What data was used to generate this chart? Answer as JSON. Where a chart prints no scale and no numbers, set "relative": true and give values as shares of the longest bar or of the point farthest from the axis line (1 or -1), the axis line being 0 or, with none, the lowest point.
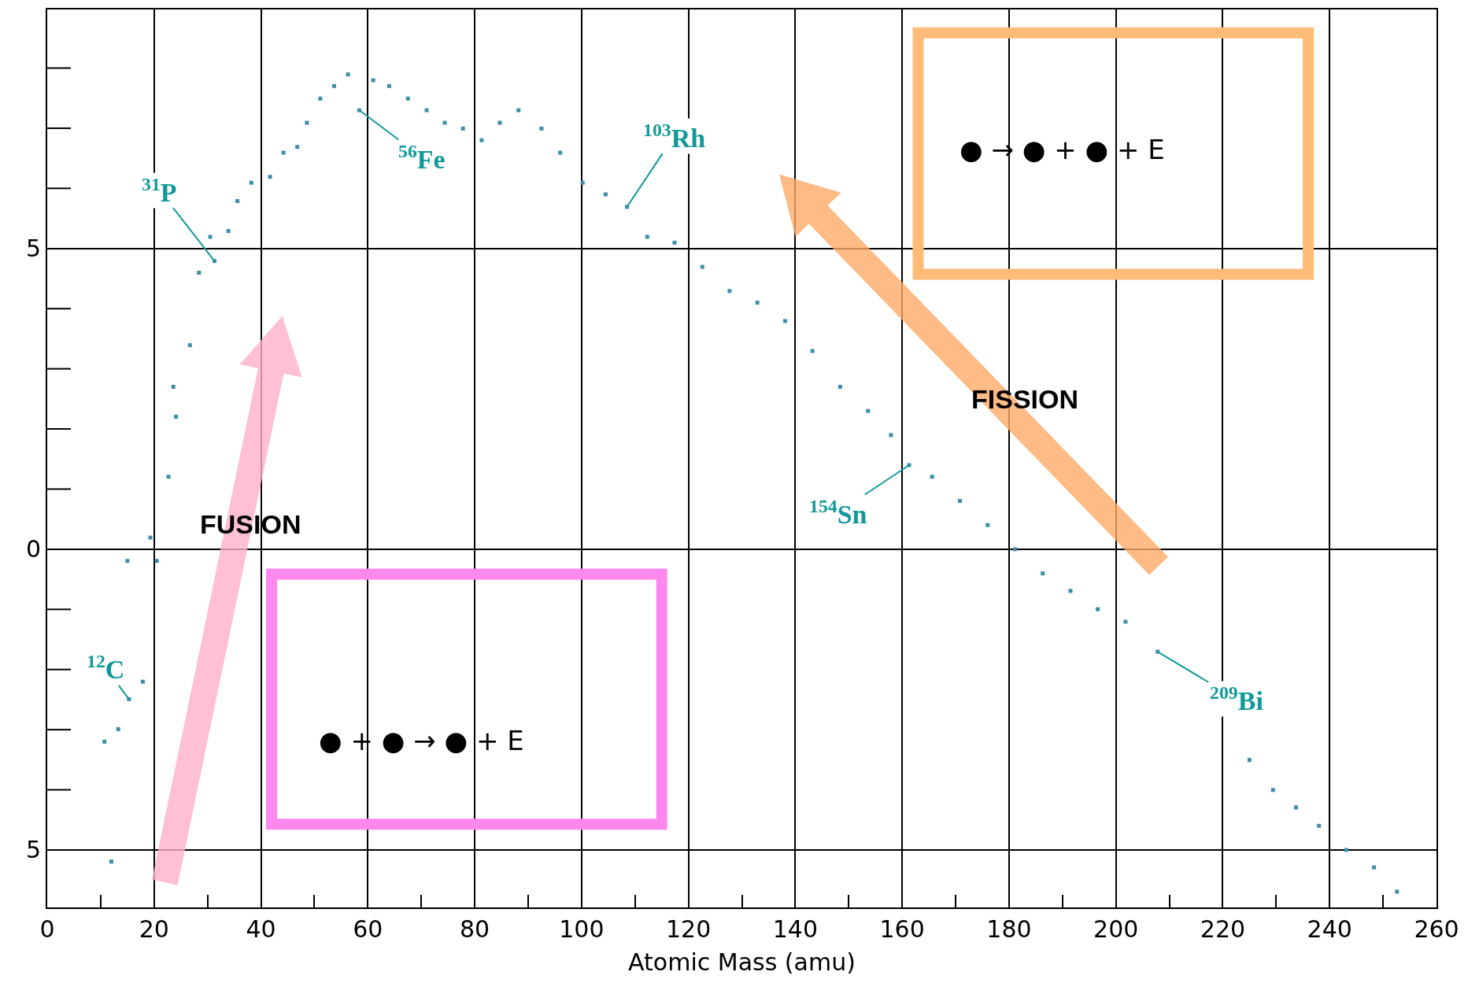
{
  "chart_data": {
    "type": "scatter",
    "xlabel": "Atomic Mass (amu)",
    "relative": true,
    "x": [
      12.0,
      10.7,
      13.3,
      15.3,
      17.9,
      15.0,
      20.5,
      19.3,
      22.7,
      24.1,
      23.6,
      26.7,
      28.4,
      31.3,
      30.5,
      33.9,
      35.6,
      38.2,
      41.7,
      44.2,
      46.8,
      48.6,
      51.1,
      53.7,
      56.3,
      58.4,
      61,
      64,
      67.5,
      71,
      74.4,
      77.8,
      81.3,
      84.7,
      88.2,
      92.5,
      96,
      100.2,
      104.5,
      108.5,
      112.3,
      117.4,
      122.6,
      127.7,
      132.9,
      138.1,
      143.2,
      148.4,
      153.6,
      157.9,
      161.3,
      165.6,
      170.8,
      176,
      181.1,
      186.3,
      191.5,
      196.6,
      201.8,
      207.8,
      225,
      229.4,
      233.7,
      238,
      243.1,
      248.3,
      252.6
    ],
    "series": [
      {
        "color": "#3a8fa8",
        "values": [
          0.055,
          0.199,
          0.214,
          0.25,
          0.271,
          0.416,
          0.416,
          0.444,
          0.517,
          0.589,
          0.625,
          0.675,
          0.762,
          0.776,
          0.805,
          0.812,
          0.848,
          0.87,
          0.877,
          0.906,
          0.913,
          0.942,
          0.971,
          0.986,
          1.0,
          0.957,
          0.993,
          0.986,
          0.971,
          0.957,
          0.942,
          0.935,
          0.921,
          0.942,
          0.957,
          0.935,
          0.906,
          0.87,
          0.856,
          0.841,
          0.805,
          0.798,
          0.769,
          0.74,
          0.726,
          0.704,
          0.668,
          0.625,
          0.596,
          0.567,
          0.531,
          0.517,
          0.488,
          0.459,
          0.43,
          0.401,
          0.38,
          0.358,
          0.343,
          0.307,
          0.177,
          0.141,
          0.12,
          0.098,
          0.069,
          0.048,
          0.019
        ]
      }
    ],
    "marker": "square",
    "xlim": [
      0,
      260
    ],
    "xticks": [
      0,
      {
        "value": 10,
        "label": null
      },
      20,
      {
        "value": 30,
        "label": null
      },
      40,
      {
        "value": 50,
        "label": null
      },
      60,
      {
        "value": 70,
        "label": null
      },
      80,
      {
        "value": 90,
        "label": null
      },
      100,
      {
        "value": 110,
        "label": null
      },
      120,
      {
        "value": 130,
        "label": null
      },
      140,
      {
        "value": 150,
        "label": null
      },
      160,
      {
        "value": 170,
        "label": null
      },
      180,
      {
        "value": 190,
        "label": null
      },
      200,
      {
        "value": 210,
        "label": null
      },
      220,
      {
        "value": 230,
        "label": null
      },
      240,
      {
        "value": 250,
        "label": null
      },
      260
    ],
    "grid": true,
    "annotations": [
      "5",
      "0",
      "5",
      {
        "text": "$^{12}$C",
        "x": 15.3,
        "y": 0.25
      },
      {
        "text": "$^{31}$P",
        "x": 31.3,
        "y": 0.776
      },
      {
        "text": "$^{56}$Fe",
        "x": 58.4,
        "y": 0.957
      },
      {
        "text": "$^{103}$Rh",
        "x": 108.5,
        "y": 0.841
      },
      {
        "text": "$^{154}$Sn",
        "x": 161.3,
        "y": 0.531
      },
      {
        "text": "$^{209}$Bi",
        "x": 207.8,
        "y": 0.307
      },
      "FUSION",
      "FISSION",
      "● + ● → ● + E",
      "● → ● + ● + E"
    ]
  }
}
